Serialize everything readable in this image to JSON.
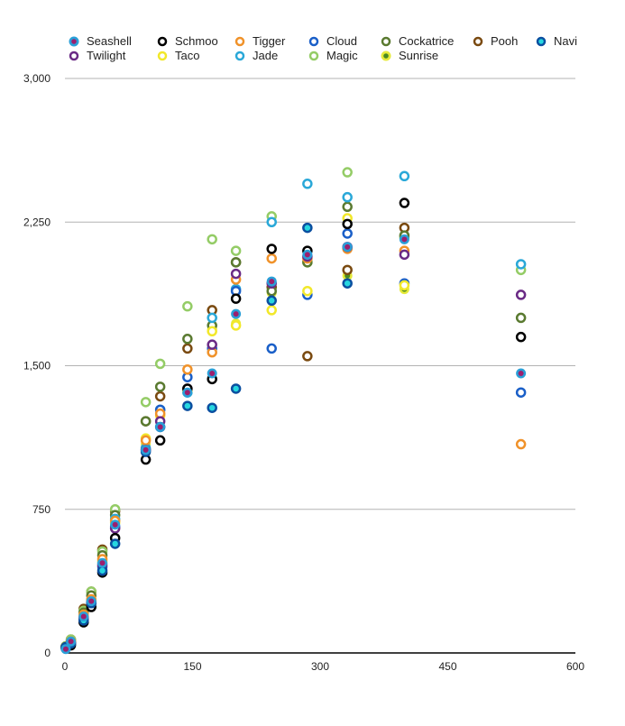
{
  "chart_data": {
    "type": "scatter",
    "title": "",
    "xlabel": "",
    "ylabel": "",
    "xlim": [
      0,
      600
    ],
    "ylim": [
      0,
      3000
    ],
    "xticks": [
      0,
      150,
      300,
      450,
      600
    ],
    "yticks": [
      0,
      750,
      1500,
      2250,
      3000
    ],
    "xtick_labels": [
      "0",
      "150",
      "300",
      "450",
      "600"
    ],
    "ytick_labels": [
      "0",
      "750",
      "1,500",
      "2,250",
      "3,000"
    ],
    "grid": "horizontal",
    "legend_position": "top",
    "x": [
      1,
      7,
      22,
      31,
      44,
      59,
      95,
      112,
      144,
      173,
      201,
      243,
      285,
      332,
      399,
      536
    ],
    "series": [
      {
        "name": "Seashell",
        "color": "#2a9fd8",
        "fill": "#9b1f6e",
        "marker": "filled-dot",
        "values": [
          20,
          60,
          190,
          270,
          470,
          670,
          1060,
          1180,
          1360,
          1460,
          1770,
          1940,
          2080,
          2120,
          2160,
          1460
        ]
      },
      {
        "name": "Navi",
        "color": "#0b4fa0",
        "fill": "#26d6e0",
        "marker": "filled-ring",
        "values": [
          30,
          50,
          170,
          260,
          430,
          570,
          1050,
          1180,
          1290,
          1280,
          1380,
          1840,
          2220,
          1930,
          null,
          null
        ]
      },
      {
        "name": "Schmoo",
        "color": "#000000",
        "fill": "#ffffff",
        "marker": "ring",
        "values": [
          30,
          40,
          160,
          240,
          420,
          600,
          1010,
          1110,
          1380,
          1430,
          1850,
          2110,
          2100,
          2240,
          2350,
          1650
        ]
      },
      {
        "name": "Twilight",
        "color": "#6a2a85",
        "fill": "#ffffff",
        "marker": "ring",
        "values": [
          25,
          55,
          185,
          265,
          460,
          650,
          1060,
          1210,
          1380,
          1610,
          1980,
          1930,
          2070,
          2120,
          2080,
          1870
        ]
      },
      {
        "name": "Tigger",
        "color": "#f0922a",
        "fill": "#ffffff",
        "marker": "ring",
        "values": [
          30,
          60,
          200,
          280,
          490,
          690,
          1110,
          1250,
          1480,
          1570,
          1950,
          2060,
          2060,
          2110,
          2100,
          1090
        ]
      },
      {
        "name": "Taco",
        "color": "#f2e82a",
        "fill": "#ffffff",
        "marker": "ring",
        "values": [
          30,
          60,
          190,
          270,
          480,
          680,
          1120,
          1240,
          1370,
          1680,
          1710,
          1790,
          1890,
          2270,
          1920,
          null
        ]
      },
      {
        "name": "Cloud",
        "color": "#1a5fc8",
        "fill": "#ffffff",
        "marker": "ring",
        "values": [
          25,
          50,
          180,
          260,
          450,
          660,
          1060,
          1270,
          1440,
          1590,
          1890,
          1590,
          1870,
          2190,
          1930,
          1360
        ]
      },
      {
        "name": "Jade",
        "color": "#2aa8d8",
        "fill": "#ffffff",
        "marker": "ring",
        "values": [
          30,
          60,
          190,
          270,
          470,
          700,
          1070,
          1270,
          1360,
          1750,
          1900,
          2250,
          2450,
          2380,
          2490,
          2030
        ]
      },
      {
        "name": "Cockatrice",
        "color": "#5a7a30",
        "fill": "#ffffff",
        "marker": "ring",
        "values": [
          30,
          60,
          210,
          300,
          510,
          720,
          1210,
          1390,
          1640,
          1710,
          2040,
          1890,
          2040,
          2330,
          2180,
          1750
        ]
      },
      {
        "name": "Magic",
        "color": "#94cc66",
        "fill": "#ffffff",
        "marker": "ring",
        "values": [
          35,
          70,
          220,
          320,
          530,
          750,
          1310,
          1510,
          1810,
          2160,
          2100,
          2280,
          2040,
          2510,
          2170,
          2000
        ]
      },
      {
        "name": "Pooh",
        "color": "#7a4a10",
        "fill": "#ffffff",
        "marker": "ring",
        "values": [
          35,
          70,
          230,
          320,
          540,
          740,
          1210,
          1340,
          1590,
          1790,
          2040,
          1910,
          1550,
          2000,
          2220,
          null
        ]
      },
      {
        "name": "Sunrise",
        "color": "#e6ea3a",
        "fill": "#4a8a20",
        "marker": "filled-dot",
        "values": [
          30,
          60,
          190,
          270,
          470,
          690,
          1090,
          1240,
          1360,
          1690,
          1720,
          1880,
          2050,
          1970,
          1900,
          null
        ]
      }
    ]
  }
}
